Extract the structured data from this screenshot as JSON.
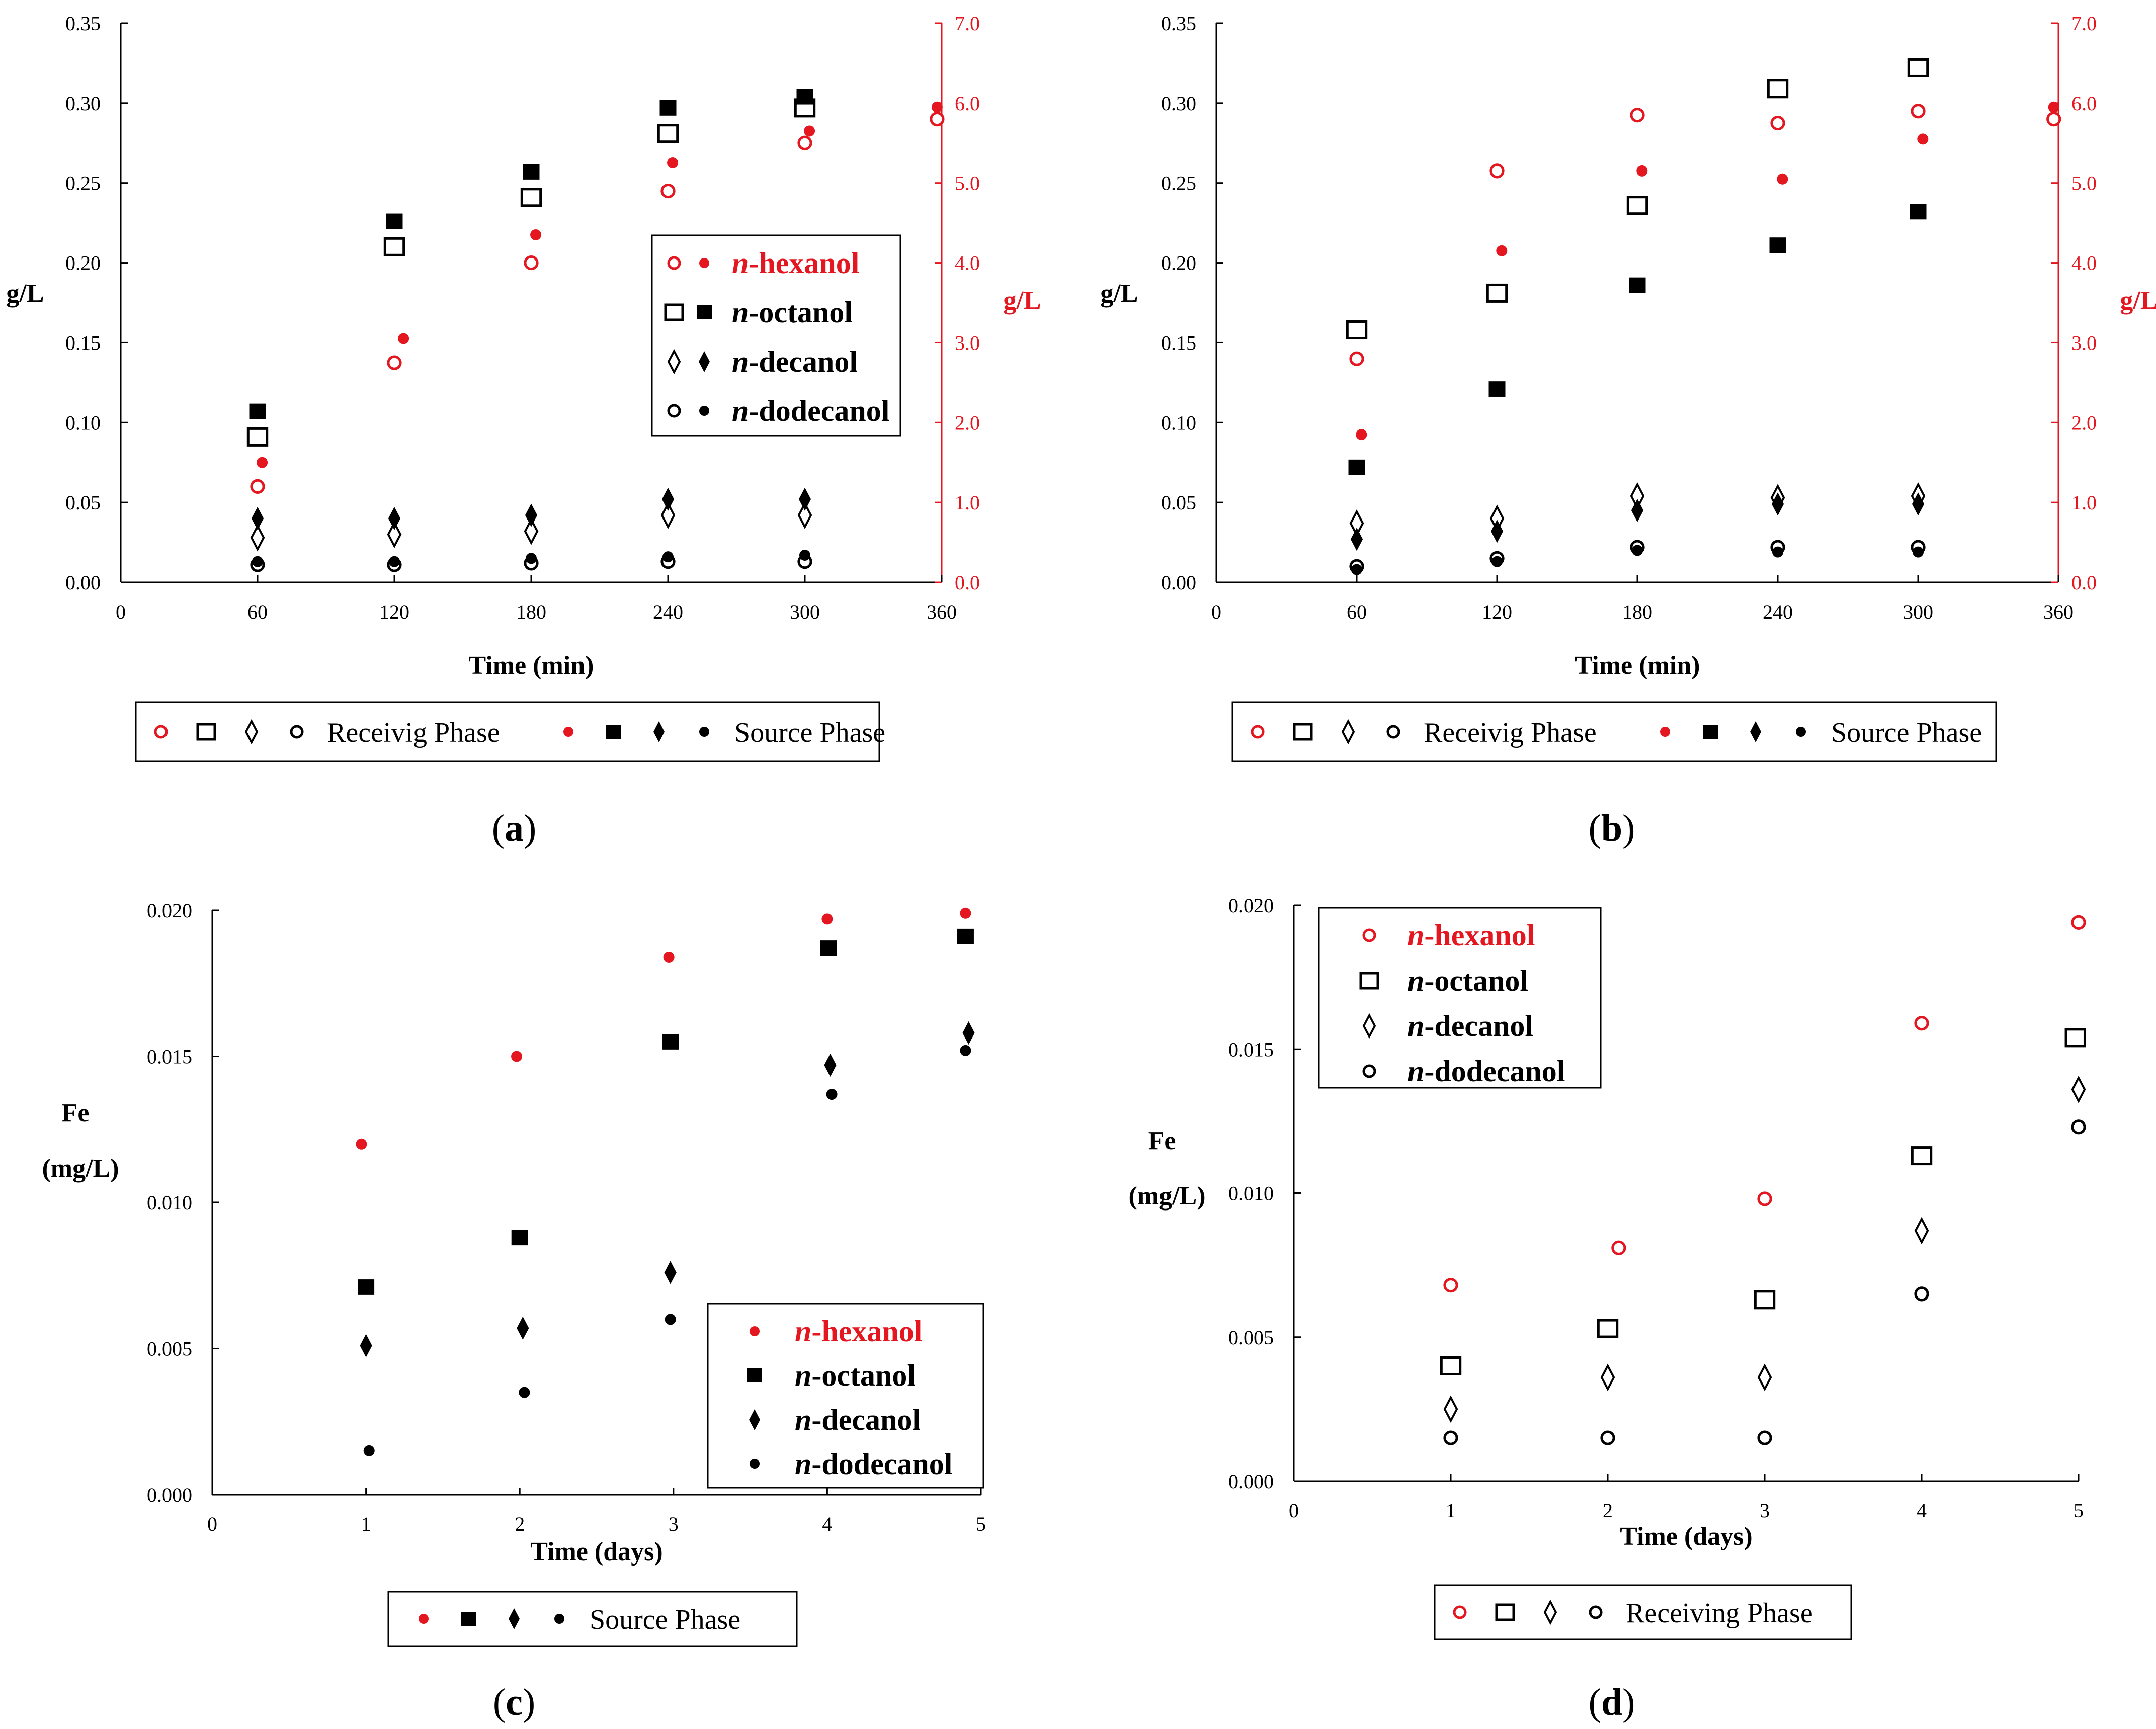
{
  "colors": {
    "red": "#e4161f",
    "black": "#000000"
  },
  "chart_data": [
    {
      "id": "a",
      "caption": "a",
      "type": "scatter",
      "x": [
        60,
        120,
        180,
        240,
        300
      ],
      "xlabel": "Time (min)",
      "ylabel": "g/L",
      "ylabel_right": "g/L",
      "xlim": [
        0,
        360
      ],
      "xticks": [
        "0",
        "60",
        "120",
        "180",
        "240",
        "300",
        "360"
      ],
      "ylim": [
        0,
        0.35
      ],
      "yticks": [
        "0.00",
        "0.05",
        "0.10",
        "0.15",
        "0.20",
        "0.25",
        "0.30",
        "0.35"
      ],
      "ylim_right": [
        0,
        7.0
      ],
      "yticks_right": [
        "0.0",
        "1.0",
        "2.0",
        "3.0",
        "4.0",
        "5.0",
        "6.0",
        "7.0"
      ],
      "series": [
        {
          "name": "n-hexanol receiving",
          "axis": "right",
          "marker": "circle-open",
          "color": "red",
          "values": [
            1.2,
            2.75,
            4.0,
            4.9,
            5.5,
            5.8
          ],
          "x_override": [
            60,
            120,
            180,
            240,
            300,
            358
          ]
        },
        {
          "name": "n-hexanol source",
          "axis": "right",
          "marker": "circle-filled",
          "color": "red",
          "values": [
            1.5,
            3.05,
            4.35,
            5.25,
            5.65,
            5.95
          ],
          "x_override": [
            62,
            124,
            182,
            242,
            302,
            358
          ]
        },
        {
          "name": "n-octanol receiving",
          "axis": "left",
          "marker": "square-open",
          "color": "black",
          "values": [
            0.091,
            0.21,
            0.241,
            0.281,
            0.297
          ]
        },
        {
          "name": "n-octanol source",
          "axis": "left",
          "marker": "square-filled",
          "color": "black",
          "values": [
            0.107,
            0.226,
            0.257,
            0.297,
            0.304
          ]
        },
        {
          "name": "n-decanol receiving",
          "axis": "left",
          "marker": "diamond-open",
          "color": "black",
          "values": [
            0.028,
            0.03,
            0.032,
            0.042,
            0.042
          ]
        },
        {
          "name": "n-decanol source",
          "axis": "left",
          "marker": "diamond-filled",
          "color": "black",
          "values": [
            0.04,
            0.04,
            0.042,
            0.052,
            0.052
          ]
        },
        {
          "name": "n-dodecanol receiving",
          "axis": "left",
          "marker": "circle-open",
          "color": "black",
          "values": [
            0.011,
            0.011,
            0.012,
            0.013,
            0.013
          ]
        },
        {
          "name": "n-dodecanol source",
          "axis": "left",
          "marker": "circle-filled",
          "color": "black",
          "values": [
            0.013,
            0.013,
            0.015,
            0.016,
            0.017
          ]
        }
      ],
      "legend": {
        "placement": "right-middle",
        "entries": [
          {
            "label_prefix": "n",
            "label_rest": "-hexanol",
            "markers": [
              "circle-open",
              "circle-filled"
            ],
            "color": "red"
          },
          {
            "label_prefix": "n",
            "label_rest": "-octanol",
            "markers": [
              "square-open",
              "square-filled"
            ],
            "color": "black"
          },
          {
            "label_prefix": "n",
            "label_rest": "-decanol",
            "markers": [
              "diamond-open",
              "diamond-filled"
            ],
            "color": "black"
          },
          {
            "label_prefix": "n",
            "label_rest": "-dodecanol",
            "markers": [
              "circle-open",
              "circle-filled"
            ],
            "color": "black"
          }
        ]
      },
      "phase_legend": {
        "receiving": "Receivig Phase",
        "source": "Source Phase"
      }
    },
    {
      "id": "b",
      "caption": "b",
      "type": "scatter",
      "x": [
        60,
        120,
        180,
        240,
        300
      ],
      "xlabel": "Time (min)",
      "ylabel": "g/L",
      "ylabel_right": "g/L",
      "xlim": [
        0,
        360
      ],
      "xticks": [
        "0",
        "60",
        "120",
        "180",
        "240",
        "300",
        "360"
      ],
      "ylim": [
        0,
        0.35
      ],
      "yticks": [
        "0.00",
        "0.05",
        "0.10",
        "0.15",
        "0.20",
        "0.25",
        "0.30",
        "0.35"
      ],
      "ylim_right": [
        0,
        7.0
      ],
      "yticks_right": [
        "0.0",
        "1.0",
        "2.0",
        "3.0",
        "4.0",
        "5.0",
        "6.0",
        "7.0"
      ],
      "series": [
        {
          "name": "n-hexanol receiving",
          "axis": "right",
          "marker": "circle-open",
          "color": "red",
          "values": [
            2.8,
            5.15,
            5.85,
            5.75,
            5.9,
            5.8
          ],
          "x_override": [
            60,
            120,
            180,
            240,
            300,
            358
          ]
        },
        {
          "name": "n-hexanol source",
          "axis": "right",
          "marker": "circle-filled",
          "color": "red",
          "values": [
            1.85,
            4.15,
            5.15,
            5.05,
            5.55,
            5.95
          ],
          "x_override": [
            62,
            122,
            182,
            242,
            302,
            358
          ]
        },
        {
          "name": "n-octanol receiving",
          "axis": "left",
          "marker": "square-open",
          "color": "black",
          "values": [
            0.158,
            0.181,
            0.236,
            0.309,
            0.322
          ]
        },
        {
          "name": "n-octanol source",
          "axis": "left",
          "marker": "square-filled",
          "color": "black",
          "values": [
            0.072,
            0.121,
            0.186,
            0.211,
            0.232
          ]
        },
        {
          "name": "n-decanol receiving",
          "axis": "left",
          "marker": "diamond-open",
          "color": "black",
          "values": [
            0.037,
            0.04,
            0.054,
            0.053,
            0.054
          ]
        },
        {
          "name": "n-decanol source",
          "axis": "left",
          "marker": "diamond-filled",
          "color": "black",
          "values": [
            0.027,
            0.032,
            0.045,
            0.049,
            0.049
          ]
        },
        {
          "name": "n-dodecanol receiving",
          "axis": "left",
          "marker": "circle-open",
          "color": "black",
          "values": [
            0.01,
            0.015,
            0.022,
            0.022,
            0.022
          ]
        },
        {
          "name": "n-dodecanol source",
          "axis": "left",
          "marker": "circle-filled",
          "color": "black",
          "values": [
            0.008,
            0.013,
            0.02,
            0.019,
            0.019
          ]
        }
      ],
      "phase_legend": {
        "receiving": "Receivig Phase",
        "source": "Source Phase"
      }
    },
    {
      "id": "c",
      "caption": "c",
      "type": "scatter",
      "x": [
        1,
        2,
        3,
        4,
        5
      ],
      "xlabel": "Time (days)",
      "ylabel": "Fe",
      "ylabel2": "(mg/L)",
      "xlim": [
        0,
        5
      ],
      "xticks": [
        "0",
        "1",
        "2",
        "3",
        "4",
        "5"
      ],
      "ylim": [
        0,
        0.02
      ],
      "yticks": [
        "0.000",
        "0.005",
        "0.010",
        "0.015",
        "0.020"
      ],
      "series": [
        {
          "name": "n-hexanol",
          "marker": "circle-filled",
          "color": "red",
          "values": [
            0.012,
            0.015,
            0.0184,
            0.0197,
            0.0199
          ],
          "x_override": [
            0.97,
            1.98,
            2.97,
            4.0,
            4.9
          ]
        },
        {
          "name": "n-octanol",
          "marker": "square-filled",
          "color": "black",
          "values": [
            0.0071,
            0.0088,
            0.0155,
            0.0187,
            0.0191
          ],
          "x_override": [
            1.0,
            2.0,
            2.98,
            4.01,
            4.9
          ]
        },
        {
          "name": "n-decanol",
          "marker": "diamond-filled",
          "color": "black",
          "values": [
            0.0051,
            0.0057,
            0.0076,
            0.0147,
            0.0158
          ],
          "x_override": [
            1.0,
            2.02,
            2.98,
            4.02,
            4.92
          ]
        },
        {
          "name": "n-dodecanol",
          "marker": "circle-filled",
          "color": "black",
          "values": [
            0.0015,
            0.0035,
            0.006,
            0.0137,
            0.0152
          ],
          "x_override": [
            1.02,
            2.03,
            2.98,
            4.03,
            4.9
          ]
        }
      ],
      "legend": {
        "placement": "right-bottom",
        "entries": [
          {
            "label_prefix": "n",
            "label_rest": "-hexanol",
            "markers": [
              "circle-filled"
            ],
            "color": "red"
          },
          {
            "label_prefix": "n",
            "label_rest": "-octanol",
            "markers": [
              "square-filled"
            ],
            "color": "black"
          },
          {
            "label_prefix": "n",
            "label_rest": "-decanol",
            "markers": [
              "diamond-filled"
            ],
            "color": "black"
          },
          {
            "label_prefix": "n",
            "label_rest": "-dodecanol",
            "markers": [
              "circle-filled"
            ],
            "color": "black"
          }
        ]
      },
      "phase_legend": {
        "source": "Source Phase"
      }
    },
    {
      "id": "d",
      "caption": "d",
      "type": "scatter",
      "x": [
        1,
        2,
        3,
        4,
        5
      ],
      "xlabel": "Time (days)",
      "ylabel": "Fe",
      "ylabel2": "(mg/L)",
      "xlim": [
        0,
        5
      ],
      "xticks": [
        "0",
        "1",
        "2",
        "3",
        "4",
        "5"
      ],
      "ylim": [
        0,
        0.02
      ],
      "yticks": [
        "0.000",
        "0.005",
        "0.010",
        "0.015",
        "0.020"
      ],
      "series": [
        {
          "name": "n-hexanol",
          "marker": "circle-open",
          "color": "red",
          "values": [
            0.0068,
            0.0081,
            0.0098,
            0.0159,
            0.0194
          ],
          "x_override": [
            1.0,
            2.07,
            3.0,
            4.0,
            5.0
          ]
        },
        {
          "name": "n-octanol",
          "marker": "square-open",
          "color": "black",
          "values": [
            0.004,
            0.0053,
            0.0063,
            0.0113,
            0.0154
          ],
          "x_override": [
            1.0,
            2.0,
            3.0,
            4.0,
            4.98
          ]
        },
        {
          "name": "n-decanol",
          "marker": "diamond-open",
          "color": "black",
          "values": [
            0.0025,
            0.0036,
            0.0036,
            0.0087,
            0.0136
          ],
          "x_override": [
            1.0,
            2.0,
            3.0,
            4.0,
            5.0
          ]
        },
        {
          "name": "n-dodecanol",
          "marker": "circle-open",
          "color": "black",
          "values": [
            0.0015,
            0.0015,
            0.0015,
            0.0065,
            0.0123
          ],
          "x_override": [
            1.0,
            2.0,
            3.0,
            4.0,
            5.0
          ]
        }
      ],
      "legend": {
        "placement": "top-left",
        "entries": [
          {
            "label_prefix": "n",
            "label_rest": "-hexanol",
            "markers": [
              "circle-open"
            ],
            "color": "red"
          },
          {
            "label_prefix": "n",
            "label_rest": "-octanol",
            "markers": [
              "square-open"
            ],
            "color": "black"
          },
          {
            "label_prefix": "n",
            "label_rest": "-decanol",
            "markers": [
              "diamond-open"
            ],
            "color": "black"
          },
          {
            "label_prefix": "n",
            "label_rest": "-dodecanol",
            "markers": [
              "circle-open"
            ],
            "color": "black"
          }
        ]
      },
      "phase_legend": {
        "receiving": "Receiving Phase"
      }
    }
  ]
}
